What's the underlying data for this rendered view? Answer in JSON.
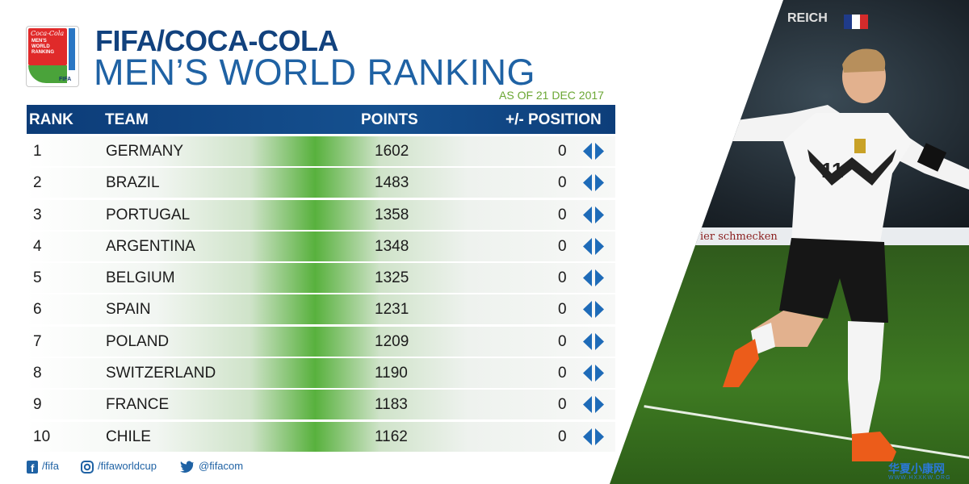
{
  "header": {
    "logo_text_top": "Coca-Cola",
    "logo_text_lines": "MEN'S WORLD RANKING",
    "logo_fifa": "FIFA",
    "title_top": "FIFA/COCA-COLA",
    "title_main": "MEN’S WORLD RANKING",
    "date": "AS OF 21 DEC 2017"
  },
  "table": {
    "columns": [
      "RANK",
      "TEAM",
      "POINTS",
      "+/- POSITION"
    ],
    "rows": [
      {
        "rank": "1",
        "team": "GERMANY",
        "points": "1602",
        "change": "0"
      },
      {
        "rank": "2",
        "team": "BRAZIL",
        "points": "1483",
        "change": "0"
      },
      {
        "rank": "3",
        "team": "PORTUGAL",
        "points": "1358",
        "change": "0"
      },
      {
        "rank": "4",
        "team": "ARGENTINA",
        "points": "1348",
        "change": "0"
      },
      {
        "rank": "5",
        "team": "BELGIUM",
        "points": "1325",
        "change": "0"
      },
      {
        "rank": "6",
        "team": "SPAIN",
        "points": "1231",
        "change": "0"
      },
      {
        "rank": "7",
        "team": "POLAND",
        "points": "1209",
        "change": "0"
      },
      {
        "rank": "8",
        "team": "SWITZERLAND",
        "points": "1190",
        "change": "0"
      },
      {
        "rank": "9",
        "team": "FRANCE",
        "points": "1183",
        "change": "0"
      },
      {
        "rank": "10",
        "team": "CHILE",
        "points": "1162",
        "change": "0"
      }
    ],
    "change_icon": "left-right-arrows-icon"
  },
  "footer": {
    "facebook": "/fifa",
    "instagram": "/fifaworldcup",
    "twitter": "@fifacom"
  },
  "photo": {
    "board_text": "ier schmecken",
    "sign_text": "REICH",
    "jersey_number": "11"
  },
  "watermark": {
    "title": "华夏小康网",
    "sub": "WWW.HXXKW.ORG"
  },
  "colors": {
    "header_blue": "#0c3c78",
    "title_blue": "#1f62a4",
    "date_green": "#6aa633",
    "row_green": "#58b13d",
    "arrow_blue": "#1e6bb8"
  }
}
